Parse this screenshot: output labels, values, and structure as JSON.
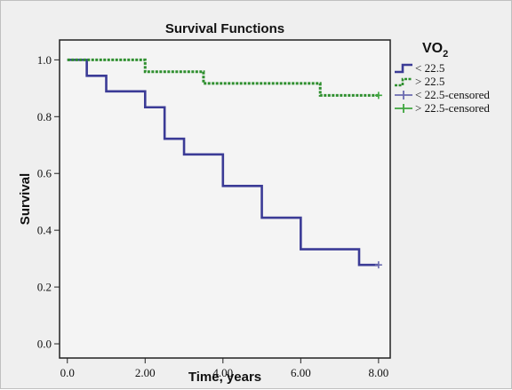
{
  "chart_data": {
    "type": "line",
    "title": "Survival Functions",
    "xlabel": "Time, years",
    "ylabel": "Survival",
    "xlim": [
      -0.2,
      8.3
    ],
    "ylim": [
      -0.05,
      1.07
    ],
    "x_ticks": [
      0,
      2,
      4,
      6,
      8
    ],
    "x_tick_labels": [
      "0.0",
      "2.00",
      "4.00",
      "6.00",
      "8.00"
    ],
    "y_ticks": [
      0,
      0.2,
      0.4,
      0.6,
      0.8,
      1.0
    ],
    "y_tick_labels": [
      "0.0",
      "0.2",
      "0.4",
      "0.6",
      "0.8",
      "1.0"
    ],
    "grid": false,
    "legend": {
      "title_main": "VO",
      "title_sub": "2",
      "placement": "right",
      "entries": [
        "< 22.5",
        "> 22.5",
        "< 22.5-censored",
        "> 22.5-censored"
      ]
    },
    "series": [
      {
        "name": "< 22.5",
        "color": "#3b3b96",
        "step": true,
        "x": [
          0,
          0.5,
          1.0,
          2.0,
          2.5,
          3.0,
          4.0,
          5.0,
          6.0,
          7.5,
          8.0
        ],
        "y": [
          1.0,
          0.944,
          0.889,
          0.833,
          0.722,
          0.667,
          0.556,
          0.444,
          0.333,
          0.278,
          0.278
        ]
      },
      {
        "name": "> 22.5",
        "color": "#2f8f2f",
        "dashed": true,
        "step": true,
        "x": [
          0,
          2.0,
          3.5,
          6.5,
          8.0
        ],
        "y": [
          1.0,
          0.958,
          0.917,
          0.875,
          0.875
        ]
      }
    ],
    "censored": [
      {
        "series": "< 22.5-censored",
        "color": "#6b6bb0",
        "x": [
          8.0
        ],
        "y": [
          0.278
        ]
      },
      {
        "series": "> 22.5-censored",
        "color": "#3fa63f",
        "x": [
          8.0
        ],
        "y": [
          0.875
        ]
      }
    ]
  }
}
